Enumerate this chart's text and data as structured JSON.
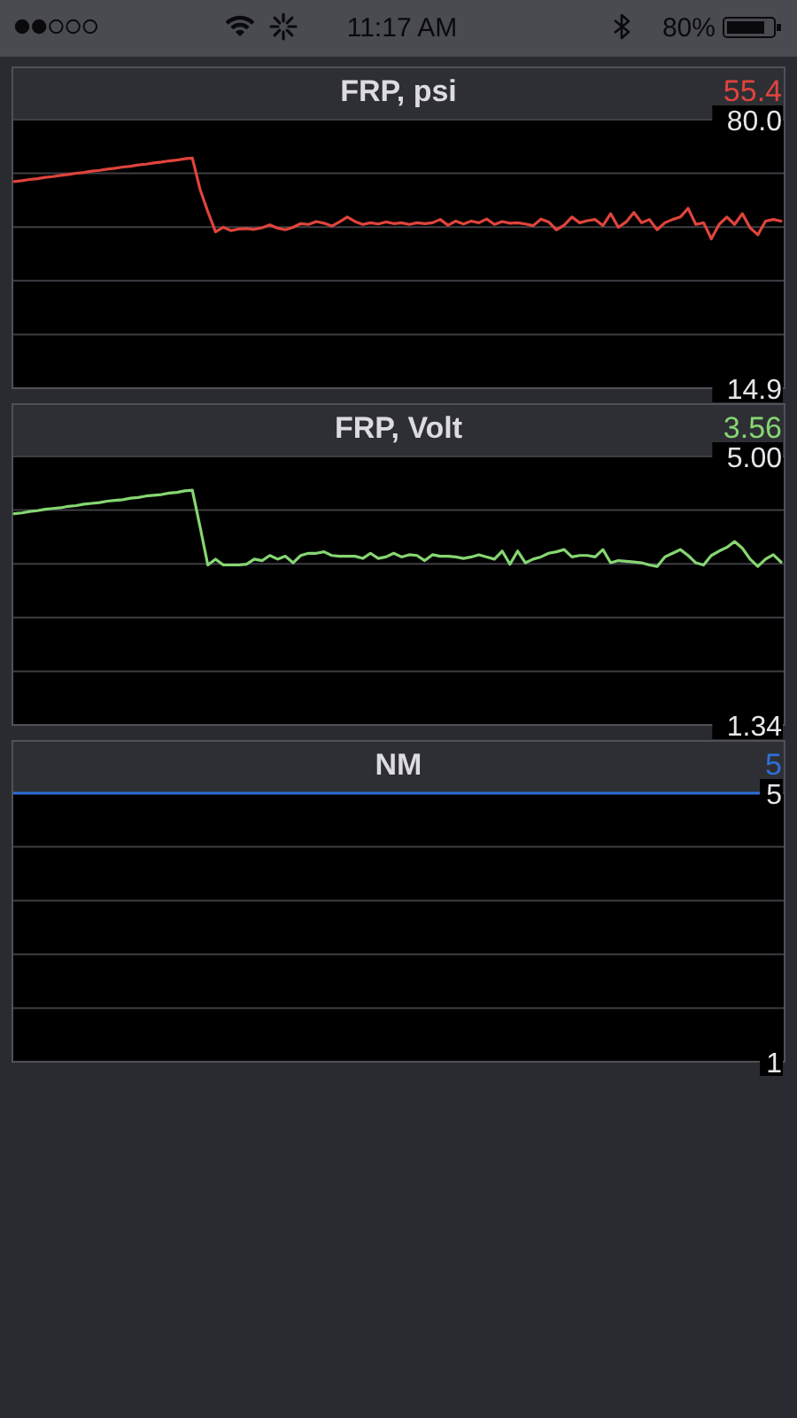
{
  "chart_data": [
    {
      "type": "other",
      "annotations": [
        "11:17 AM",
        "80%"
      ]
    },
    {
      "type": "line",
      "title": "FRP, psi",
      "annotations": [
        "55.4"
      ],
      "tick_labels": "y",
      "grid": "y",
      "categories": [
        null,
        null,
        null,
        null,
        null,
        null,
        null,
        null,
        null,
        null,
        null,
        null,
        null,
        null,
        null,
        null,
        null,
        null,
        null,
        null,
        null,
        null,
        null,
        null,
        null,
        null,
        null,
        null,
        null,
        null,
        null,
        null,
        null,
        null,
        null,
        null,
        null,
        null,
        null,
        null,
        null,
        null,
        null,
        null,
        null,
        null,
        null,
        null,
        null,
        null,
        null,
        null,
        null,
        null,
        null,
        null,
        null,
        null,
        null,
        null,
        null,
        null,
        null,
        null,
        null,
        null,
        null,
        null,
        null,
        null,
        null,
        null,
        null,
        null,
        null,
        null,
        null,
        null,
        null,
        null,
        null,
        null,
        null,
        null,
        null,
        null,
        null,
        null,
        null,
        null,
        null,
        null,
        null,
        null,
        null,
        null,
        null,
        null,
        null,
        null
      ],
      "series": [
        {
          "color": "#e0443c",
          "values": [
            65.0,
            65.2,
            65.5,
            65.7,
            66.0,
            66.2,
            66.5,
            66.7,
            67.0,
            67.2,
            67.5,
            67.7,
            68.0,
            68.2,
            68.5,
            68.7,
            69.0,
            69.2,
            69.5,
            69.7,
            70.0,
            70.2,
            70.5,
            70.7,
            63.1,
            57.7,
            52.8,
            53.9,
            53.1,
            53.5,
            53.6,
            53.4,
            53.8,
            54.5,
            53.7,
            53.3,
            53.9,
            54.8,
            54.6,
            55.3,
            54.9,
            54.2,
            55.2,
            56.4,
            55.3,
            54.6,
            55.0,
            54.7,
            55.2,
            54.8,
            55.0,
            54.6,
            55.0,
            54.8,
            55.0,
            55.8,
            54.4,
            55.4,
            54.7,
            55.4,
            55.0,
            55.9,
            54.6,
            55.3,
            54.9,
            55.0,
            54.7,
            54.3,
            55.9,
            55.2,
            53.3,
            54.4,
            56.4,
            55.0,
            55.5,
            55.8,
            54.3,
            57.2,
            53.9,
            55.2,
            57.5,
            55.0,
            55.8,
            53.3,
            55.0,
            55.8,
            56.4,
            58.5,
            54.6,
            55.0,
            51.1,
            54.6,
            56.4,
            54.6,
            57.2,
            53.8,
            52.1,
            55.4,
            55.8,
            55.4
          ]
        }
      ],
      "ylim": [
        14.9,
        80
      ],
      "yticks": [
        14.9,
        {
          "value": 27.92,
          "label": null
        },
        {
          "value": 40.94,
          "label": null
        },
        {
          "value": 53.96,
          "label": null
        },
        {
          "value": 66.98,
          "label": null
        },
        {
          "value": 80,
          "label": "80.0"
        }
      ]
    },
    {
      "type": "line",
      "title": "FRP, Volt",
      "annotations": [
        "3.56"
      ],
      "tick_labels": "y",
      "grid": "y",
      "categories": [
        null,
        null,
        null,
        null,
        null,
        null,
        null,
        null,
        null,
        null,
        null,
        null,
        null,
        null,
        null,
        null,
        null,
        null,
        null,
        null,
        null,
        null,
        null,
        null,
        null,
        null,
        null,
        null,
        null,
        null,
        null,
        null,
        null,
        null,
        null,
        null,
        null,
        null,
        null,
        null,
        null,
        null,
        null,
        null,
        null,
        null,
        null,
        null,
        null,
        null,
        null,
        null,
        null,
        null,
        null,
        null,
        null,
        null,
        null,
        null,
        null,
        null,
        null,
        null,
        null,
        null,
        null,
        null,
        null,
        null,
        null,
        null,
        null,
        null,
        null,
        null,
        null,
        null,
        null,
        null,
        null,
        null,
        null,
        null,
        null,
        null,
        null,
        null,
        null,
        null,
        null,
        null,
        null,
        null,
        null,
        null,
        null,
        null,
        null,
        null
      ],
      "series": [
        {
          "color": "#86d672",
          "values": [
            4.22,
            4.23,
            4.25,
            4.26,
            4.28,
            4.29,
            4.3,
            4.32,
            4.33,
            4.35,
            4.36,
            4.37,
            4.39,
            4.4,
            4.41,
            4.43,
            4.44,
            4.46,
            4.47,
            4.48,
            4.5,
            4.51,
            4.53,
            4.54,
            4.04,
            3.52,
            3.6,
            3.52,
            3.52,
            3.52,
            3.53,
            3.6,
            3.58,
            3.65,
            3.6,
            3.64,
            3.55,
            3.65,
            3.68,
            3.68,
            3.7,
            3.65,
            3.64,
            3.64,
            3.64,
            3.61,
            3.68,
            3.61,
            3.63,
            3.68,
            3.63,
            3.66,
            3.65,
            3.58,
            3.66,
            3.64,
            3.64,
            3.63,
            3.61,
            3.63,
            3.66,
            3.63,
            3.6,
            3.71,
            3.53,
            3.71,
            3.55,
            3.6,
            3.63,
            3.68,
            3.7,
            3.73,
            3.63,
            3.65,
            3.65,
            3.63,
            3.73,
            3.55,
            3.58,
            3.57,
            3.56,
            3.55,
            3.52,
            3.5,
            3.63,
            3.68,
            3.73,
            3.65,
            3.55,
            3.52,
            3.65,
            3.71,
            3.76,
            3.84,
            3.75,
            3.6,
            3.5,
            3.6,
            3.66,
            3.56
          ]
        }
      ],
      "ylim": [
        1.34,
        5
      ],
      "yticks": [
        1.34,
        {
          "value": 2.072,
          "label": null
        },
        {
          "value": 2.804,
          "label": null
        },
        {
          "value": 3.536,
          "label": null
        },
        {
          "value": 4.268,
          "label": null
        },
        {
          "value": 5,
          "label": "5.00"
        }
      ]
    },
    {
      "type": "line",
      "title": "NM",
      "annotations": [
        "5"
      ],
      "tick_labels": "y",
      "grid": "y",
      "categories": [
        null,
        null,
        null,
        null,
        null,
        null,
        null,
        null,
        null,
        null,
        null,
        null,
        null,
        null,
        null,
        null,
        null,
        null,
        null,
        null
      ],
      "series": [
        {
          "color": "#2f6fd6",
          "values": [
            5,
            5,
            5,
            5,
            5,
            5,
            5,
            5,
            5,
            5,
            5,
            5,
            5,
            5,
            5,
            5,
            5,
            5,
            5,
            5
          ]
        }
      ],
      "ylim": [
        1,
        5
      ],
      "yticks": [
        1,
        {
          "value": 1.8,
          "label": null
        },
        {
          "value": 2.6,
          "label": null
        },
        {
          "value": 3.4,
          "label": null
        },
        {
          "value": 4.2,
          "label": null
        },
        5
      ]
    }
  ]
}
